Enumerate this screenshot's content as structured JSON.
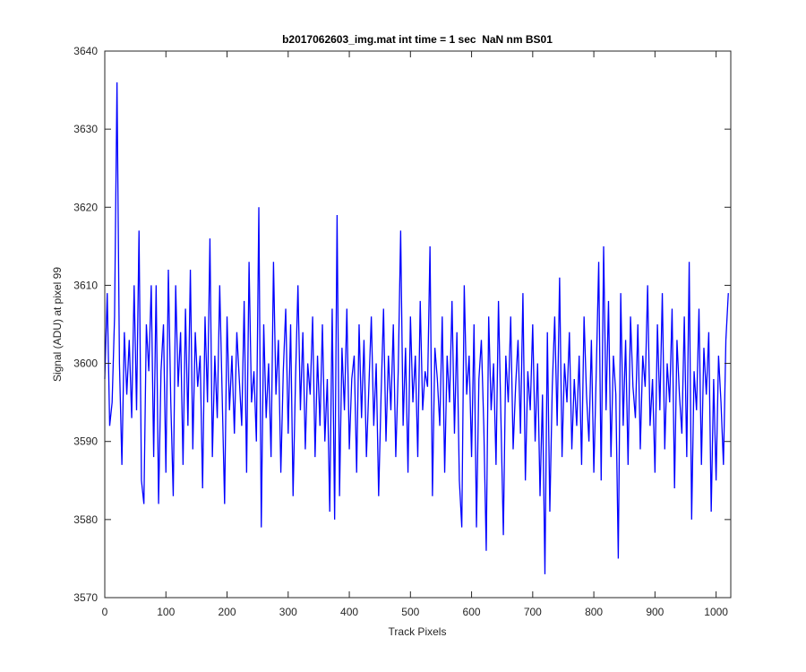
{
  "chart_data": {
    "type": "line",
    "title": "b2017062603_img.mat int time = 1 sec  NaN nm BS01",
    "x_label": "Track Pixels",
    "y_label": "Signal (ADU) at pixel 99",
    "xlim": [
      0,
      1024
    ],
    "ylim": [
      3570,
      3640
    ],
    "xticks": [
      0,
      100,
      200,
      300,
      400,
      500,
      600,
      700,
      800,
      900,
      1000
    ],
    "yticks": [
      3570,
      3580,
      3590,
      3600,
      3610,
      3620,
      3630,
      3640
    ],
    "grid": false,
    "x": [
      0,
      4,
      8,
      12,
      16,
      20,
      24,
      28,
      32,
      36,
      40,
      44,
      48,
      52,
      56,
      60,
      64,
      68,
      72,
      76,
      80,
      84,
      88,
      92,
      96,
      100,
      104,
      108,
      112,
      116,
      120,
      124,
      128,
      132,
      136,
      140,
      144,
      148,
      152,
      156,
      160,
      164,
      168,
      172,
      176,
      180,
      184,
      188,
      192,
      196,
      200,
      204,
      208,
      212,
      216,
      220,
      224,
      228,
      232,
      236,
      240,
      244,
      248,
      252,
      256,
      260,
      264,
      268,
      272,
      276,
      280,
      284,
      288,
      292,
      296,
      300,
      304,
      308,
      312,
      316,
      320,
      324,
      328,
      332,
      336,
      340,
      344,
      348,
      352,
      356,
      360,
      364,
      368,
      372,
      376,
      380,
      384,
      388,
      392,
      396,
      400,
      404,
      408,
      412,
      416,
      420,
      424,
      428,
      432,
      436,
      440,
      444,
      448,
      452,
      456,
      460,
      464,
      468,
      472,
      476,
      480,
      484,
      488,
      492,
      496,
      500,
      504,
      508,
      512,
      516,
      520,
      524,
      528,
      532,
      536,
      540,
      544,
      548,
      552,
      556,
      560,
      564,
      568,
      572,
      576,
      580,
      584,
      588,
      592,
      596,
      600,
      604,
      608,
      612,
      616,
      620,
      624,
      628,
      632,
      636,
      640,
      644,
      648,
      652,
      656,
      660,
      664,
      668,
      672,
      676,
      680,
      684,
      688,
      692,
      696,
      700,
      704,
      708,
      712,
      716,
      720,
      724,
      728,
      732,
      736,
      740,
      744,
      748,
      752,
      756,
      760,
      764,
      768,
      772,
      776,
      780,
      784,
      788,
      792,
      796,
      800,
      804,
      808,
      812,
      816,
      820,
      824,
      828,
      832,
      836,
      840,
      844,
      848,
      852,
      856,
      860,
      864,
      868,
      872,
      876,
      880,
      884,
      888,
      892,
      896,
      900,
      904,
      908,
      912,
      916,
      920,
      924,
      928,
      932,
      936,
      940,
      944,
      948,
      952,
      956,
      960,
      964,
      968,
      972,
      976,
      980,
      984,
      988,
      992,
      996,
      1000,
      1004,
      1008,
      1012,
      1016,
      1020
    ],
    "series": [
      {
        "color": "#0000ff",
        "values": [
          3598,
          3609,
          3592,
          3595,
          3606,
          3636,
          3600,
          3587,
          3604,
          3596,
          3603,
          3593,
          3610,
          3594,
          3617,
          3585,
          3582,
          3605,
          3599,
          3610,
          3588,
          3610,
          3582,
          3599,
          3605,
          3586,
          3612,
          3595,
          3583,
          3610,
          3597,
          3604,
          3587,
          3607,
          3592,
          3612,
          3589,
          3604,
          3597,
          3601,
          3584,
          3606,
          3595,
          3616,
          3588,
          3601,
          3593,
          3610,
          3596,
          3582,
          3606,
          3594,
          3601,
          3591,
          3604,
          3598,
          3592,
          3608,
          3586,
          3613,
          3595,
          3599,
          3590,
          3620,
          3579,
          3605,
          3593,
          3600,
          3588,
          3613,
          3596,
          3603,
          3586,
          3599,
          3607,
          3591,
          3605,
          3583,
          3598,
          3610,
          3594,
          3604,
          3589,
          3600,
          3596,
          3606,
          3588,
          3601,
          3592,
          3605,
          3590,
          3598,
          3581,
          3607,
          3580,
          3619,
          3583,
          3602,
          3594,
          3607,
          3589,
          3598,
          3601,
          3586,
          3605,
          3593,
          3603,
          3588,
          3597,
          3606,
          3592,
          3600,
          3583,
          3596,
          3607,
          3590,
          3601,
          3594,
          3605,
          3588,
          3599,
          3617,
          3592,
          3602,
          3586,
          3606,
          3595,
          3601,
          3588,
          3608,
          3594,
          3599,
          3597,
          3615,
          3583,
          3602,
          3598,
          3592,
          3606,
          3586,
          3601,
          3595,
          3608,
          3591,
          3604,
          3585,
          3579,
          3610,
          3596,
          3601,
          3588,
          3605,
          3579,
          3598,
          3603,
          3592,
          3576,
          3606,
          3594,
          3600,
          3587,
          3608,
          3593,
          3578,
          3601,
          3595,
          3606,
          3589,
          3597,
          3603,
          3591,
          3609,
          3585,
          3599,
          3594,
          3605,
          3590,
          3600,
          3583,
          3596,
          3573,
          3604,
          3581,
          3597,
          3606,
          3592,
          3611,
          3588,
          3600,
          3595,
          3604,
          3589,
          3598,
          3592,
          3601,
          3587,
          3606,
          3596,
          3590,
          3603,
          3586,
          3599,
          3613,
          3585,
          3615,
          3594,
          3608,
          3588,
          3601,
          3596,
          3575,
          3609,
          3592,
          3603,
          3587,
          3606,
          3597,
          3593,
          3605,
          3589,
          3601,
          3597,
          3610,
          3592,
          3598,
          3586,
          3605,
          3594,
          3609,
          3589,
          3600,
          3595,
          3607,
          3584,
          3603,
          3596,
          3591,
          3606,
          3588,
          3613,
          3580,
          3599,
          3594,
          3607,
          3587,
          3602,
          3596,
          3604,
          3581,
          3598,
          3585,
          3601,
          3595,
          3587,
          3603,
          3609
        ]
      }
    ]
  }
}
